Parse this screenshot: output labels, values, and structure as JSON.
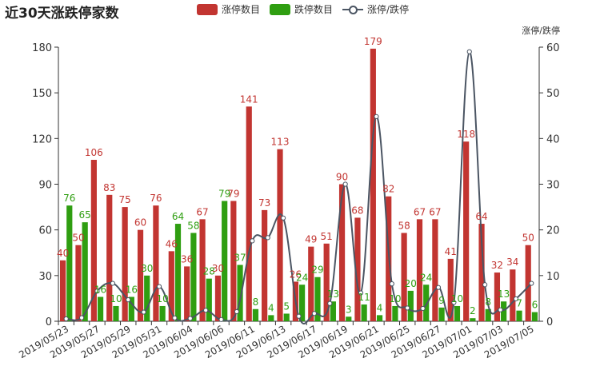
{
  "title": "近30天涨跌停家数",
  "legend": {
    "limit_up": "涨停数目",
    "limit_down": "跌停数目",
    "ratio": "涨停/跌停"
  },
  "colors": {
    "limit_up": "#c23531",
    "limit_down": "#2f9e11",
    "ratio": "#4b5563",
    "axis": "#333333"
  },
  "chart_data": {
    "type": "bar",
    "title": "近30天涨跌停家数",
    "y2label": "涨停/跌停",
    "ylim": [
      0,
      180
    ],
    "y2lim": [
      0,
      60
    ],
    "yticks": [
      0,
      30,
      60,
      90,
      120,
      150,
      180
    ],
    "y2ticks": [
      0,
      10,
      20,
      30,
      40,
      50,
      60
    ],
    "legend_position": "top",
    "categories": [
      "2019/05/23",
      "2019/05/24",
      "2019/05/27",
      "2019/05/28",
      "2019/05/29",
      "2019/05/30",
      "2019/05/31",
      "2019/06/03",
      "2019/06/04",
      "2019/06/05",
      "2019/06/06",
      "2019/06/10",
      "2019/06/11",
      "2019/06/12",
      "2019/06/13",
      "2019/06/14",
      "2019/06/17",
      "2019/06/18",
      "2019/06/19",
      "2019/06/20",
      "2019/06/21",
      "2019/06/24",
      "2019/06/25",
      "2019/06/26",
      "2019/06/27",
      "2019/06/28",
      "2019/07/01",
      "2019/07/02",
      "2019/07/03",
      "2019/07/04",
      "2019/07/05"
    ],
    "shown_tick_labels": [
      "2019/05/23",
      "2019/05/27",
      "2019/05/29",
      "2019/05/31",
      "2019/06/04",
      "2019/06/06",
      "2019/06/11",
      "2019/06/13",
      "2019/06/17",
      "2019/06/19",
      "2019/06/21",
      "2019/06/25",
      "2019/06/27",
      "2019/07/01",
      "2019/07/03",
      "2019/07/05"
    ],
    "series": [
      {
        "name": "涨停数目",
        "kind": "bar",
        "color": "#c23531",
        "values": [
          40,
          50,
          106,
          83,
          75,
          60,
          76,
          46,
          36,
          67,
          30,
          79,
          141,
          73,
          113,
          26,
          49,
          51,
          90,
          68,
          179,
          82,
          58,
          67,
          67,
          41,
          118,
          64,
          32,
          34,
          50
        ]
      },
      {
        "name": "跌停数目",
        "kind": "bar",
        "color": "#2f9e11",
        "values": [
          76,
          65,
          16,
          10,
          16,
          30,
          10,
          64,
          58,
          28,
          79,
          37,
          8,
          4,
          5,
          24,
          29,
          13,
          3,
          11,
          4,
          10,
          20,
          24,
          9,
          10,
          2,
          8,
          13,
          7,
          6
        ]
      },
      {
        "name": "涨停/跌停",
        "kind": "line",
        "color": "#4b5563",
        "axis": "right",
        "values": [
          0.53,
          0.77,
          6.6,
          8.3,
          4.7,
          2.0,
          7.6,
          0.72,
          0.62,
          2.4,
          0.38,
          2.1,
          17.6,
          18.3,
          22.6,
          1.1,
          1.7,
          3.9,
          30.0,
          6.2,
          44.8,
          8.2,
          2.9,
          2.8,
          7.4,
          4.1,
          59.0,
          8.0,
          2.5,
          4.9,
          8.3
        ]
      }
    ]
  }
}
